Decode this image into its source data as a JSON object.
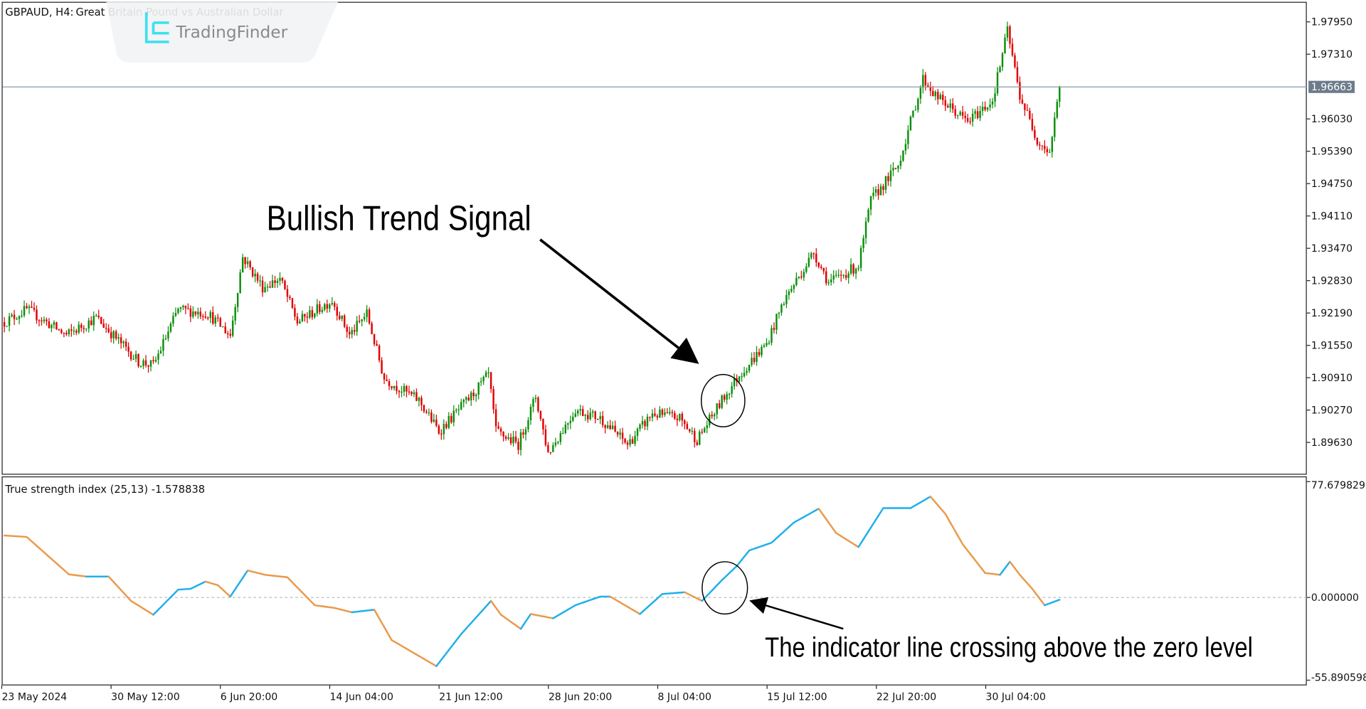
{
  "header": {
    "symbol_label": "GBPAUD, H4:",
    "description": "Great Britain Pound vs Australian Dollar"
  },
  "watermark": {
    "brand": "TradingFinder",
    "icon": "tradingfinder-logo-icon",
    "icon_color": "#3ee0f0"
  },
  "price_axis": {
    "ticks": [
      "1.97950",
      "1.97310",
      "1.96030",
      "1.95390",
      "1.94750",
      "1.94110",
      "1.93470",
      "1.92830",
      "1.92190",
      "1.91550",
      "1.90910",
      "1.90270",
      "1.89630"
    ],
    "tick_values": [
      1.9795,
      1.9731,
      1.9603,
      1.9539,
      1.9475,
      1.9411,
      1.9347,
      1.9283,
      1.9219,
      1.9155,
      1.9091,
      1.9027,
      1.8963
    ],
    "current_price": "1.96663",
    "current_price_value": 1.96663
  },
  "indicator": {
    "label": "True strength index (25,13) -1.578838",
    "axis_max": "77.679829",
    "axis_zero": "0.000000",
    "axis_min": "-55.890598",
    "range": [
      -55.890598,
      77.679829
    ],
    "last_value": -1.578838,
    "rising_color": "#1fb0ea",
    "falling_color": "#e99a4c"
  },
  "time_axis": {
    "labels": [
      "23 May 2024",
      "30 May 12:00",
      "6 Jun 20:00",
      "14 Jun 04:00",
      "21 Jun 12:00",
      "28 Jun 20:00",
      "8 Jul 04:00",
      "15 Jul 12:00",
      "22 Jul 20:00",
      "30 Jul 04:00"
    ]
  },
  "colors": {
    "bull": "#0b8f0b",
    "bear": "#e00000",
    "price_line": "#8a9aa8"
  },
  "annotations": {
    "signal_title": "Bullish Trend Signal",
    "crossing_note": "The indicator line crossing above the zero level"
  },
  "chart_data": {
    "type": "candlestick",
    "timeframe": "H4",
    "bar_count": 426,
    "price_path_by_bar": [
      [
        0,
        1.9201
      ],
      [
        9,
        1.9226
      ],
      [
        25,
        1.9175
      ],
      [
        37,
        1.921
      ],
      [
        54,
        1.9123
      ],
      [
        60,
        1.9115
      ],
      [
        70,
        1.9226
      ],
      [
        82,
        1.9218
      ],
      [
        91,
        1.9175
      ],
      [
        96,
        1.933
      ],
      [
        104,
        1.927
      ],
      [
        111,
        1.9287
      ],
      [
        118,
        1.9201
      ],
      [
        132,
        1.9244
      ],
      [
        139,
        1.9175
      ],
      [
        146,
        1.9218
      ],
      [
        153,
        1.9089
      ],
      [
        167,
        1.9046
      ],
      [
        175,
        1.8985
      ],
      [
        188,
        1.9054
      ],
      [
        195,
        1.9097
      ],
      [
        198,
        1.8985
      ],
      [
        207,
        1.8959
      ],
      [
        214,
        1.9054
      ],
      [
        219,
        1.8942
      ],
      [
        230,
        1.9028
      ],
      [
        240,
        1.9011
      ],
      [
        251,
        1.8959
      ],
      [
        261,
        1.902
      ],
      [
        272,
        1.9011
      ],
      [
        279,
        1.8968
      ],
      [
        289,
        1.9046
      ],
      [
        296,
        1.9097
      ],
      [
        307,
        1.9158
      ],
      [
        314,
        1.9244
      ],
      [
        326,
        1.9339
      ],
      [
        332,
        1.9279
      ],
      [
        344,
        1.9313
      ],
      [
        349,
        1.9442
      ],
      [
        360,
        1.9511
      ],
      [
        370,
        1.9683
      ],
      [
        375,
        1.9649
      ],
      [
        388,
        1.9597
      ],
      [
        398,
        1.964
      ],
      [
        404,
        1.9778
      ],
      [
        409,
        1.9649
      ],
      [
        416,
        1.9562
      ],
      [
        421,
        1.9537
      ],
      [
        425,
        1.9666
      ]
    ],
    "tsi_path_by_bar": [
      [
        0,
        43
      ],
      [
        9,
        42
      ],
      [
        26,
        16
      ],
      [
        33,
        14.5
      ],
      [
        42,
        14.5
      ],
      [
        51,
        -2.4
      ],
      [
        60,
        -12
      ],
      [
        70,
        5.4
      ],
      [
        75,
        6
      ],
      [
        81,
        11
      ],
      [
        86,
        8.5
      ],
      [
        91,
        0.6
      ],
      [
        98,
        18.7
      ],
      [
        105,
        15.7
      ],
      [
        114,
        14
      ],
      [
        125,
        -5.4
      ],
      [
        133,
        -7.3
      ],
      [
        140,
        -10.3
      ],
      [
        149,
        -8.5
      ],
      [
        156,
        -29.6
      ],
      [
        174,
        -47.7
      ],
      [
        184,
        -25.4
      ],
      [
        196,
        -2.4
      ],
      [
        200,
        -12
      ],
      [
        208,
        -21.8
      ],
      [
        212,
        -11.5
      ],
      [
        221,
        -14.5
      ],
      [
        230,
        -5.4
      ],
      [
        240,
        0.6
      ],
      [
        244,
        0.6
      ],
      [
        256,
        -11.5
      ],
      [
        265,
        2.4
      ],
      [
        274,
        3.6
      ],
      [
        281,
        -2.4
      ],
      [
        289,
        12
      ],
      [
        295,
        21.8
      ],
      [
        300,
        32.6
      ],
      [
        309,
        38
      ],
      [
        318,
        52
      ],
      [
        328,
        61.6
      ],
      [
        335,
        44.7
      ],
      [
        344,
        35
      ],
      [
        354,
        62
      ],
      [
        365,
        62
      ],
      [
        373,
        70
      ],
      [
        379,
        58
      ],
      [
        386,
        36.9
      ],
      [
        395,
        17
      ],
      [
        401,
        15.7
      ],
      [
        405,
        24.8
      ],
      [
        409,
        15.7
      ],
      [
        414,
        6
      ],
      [
        419,
        -5.4
      ],
      [
        425,
        -1.578838
      ]
    ]
  }
}
